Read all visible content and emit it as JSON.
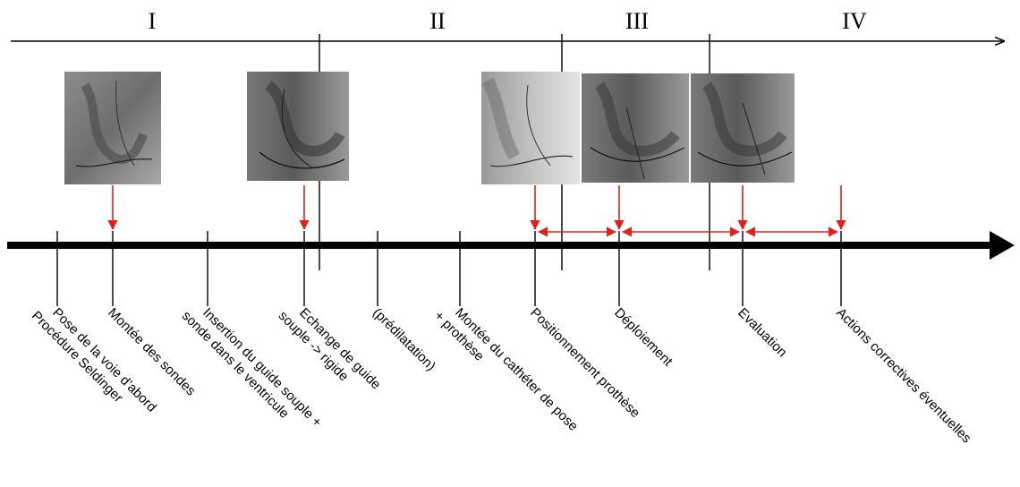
{
  "phases": [
    "I",
    "II",
    "III",
    "IV"
  ],
  "steps": [
    {
      "lines": [
        "Pose de la voie d’abord",
        "Procédure Seldinger"
      ]
    },
    {
      "lines": [
        "Montée des sondes"
      ]
    },
    {
      "lines": [
        "Insertion du guide souple +",
        "sonde dans le ventricule"
      ]
    },
    {
      "lines": [
        "Echange de guide",
        "souple -> rigide"
      ]
    },
    {
      "lines": [
        "(prédilatation)"
      ]
    },
    {
      "lines": [
        "Montée du cathéter de pose",
        "+ prothèse"
      ]
    },
    {
      "lines": [
        "Positionnement prothèse"
      ]
    },
    {
      "lines": [
        "Déploiement"
      ]
    },
    {
      "lines": [
        "Evaluation"
      ]
    },
    {
      "lines": [
        "Actions correctives éventuelles"
      ]
    }
  ],
  "images": [
    {
      "name": "fluoro-image-sondes"
    },
    {
      "name": "fluoro-image-echange-guide"
    },
    {
      "name": "fluoro-image-positionnement"
    },
    {
      "name": "fluoro-image-deploiement"
    },
    {
      "name": "fluoro-image-evaluation"
    }
  ],
  "colors": {
    "axis": "#000000",
    "marker": "#e0201b"
  }
}
